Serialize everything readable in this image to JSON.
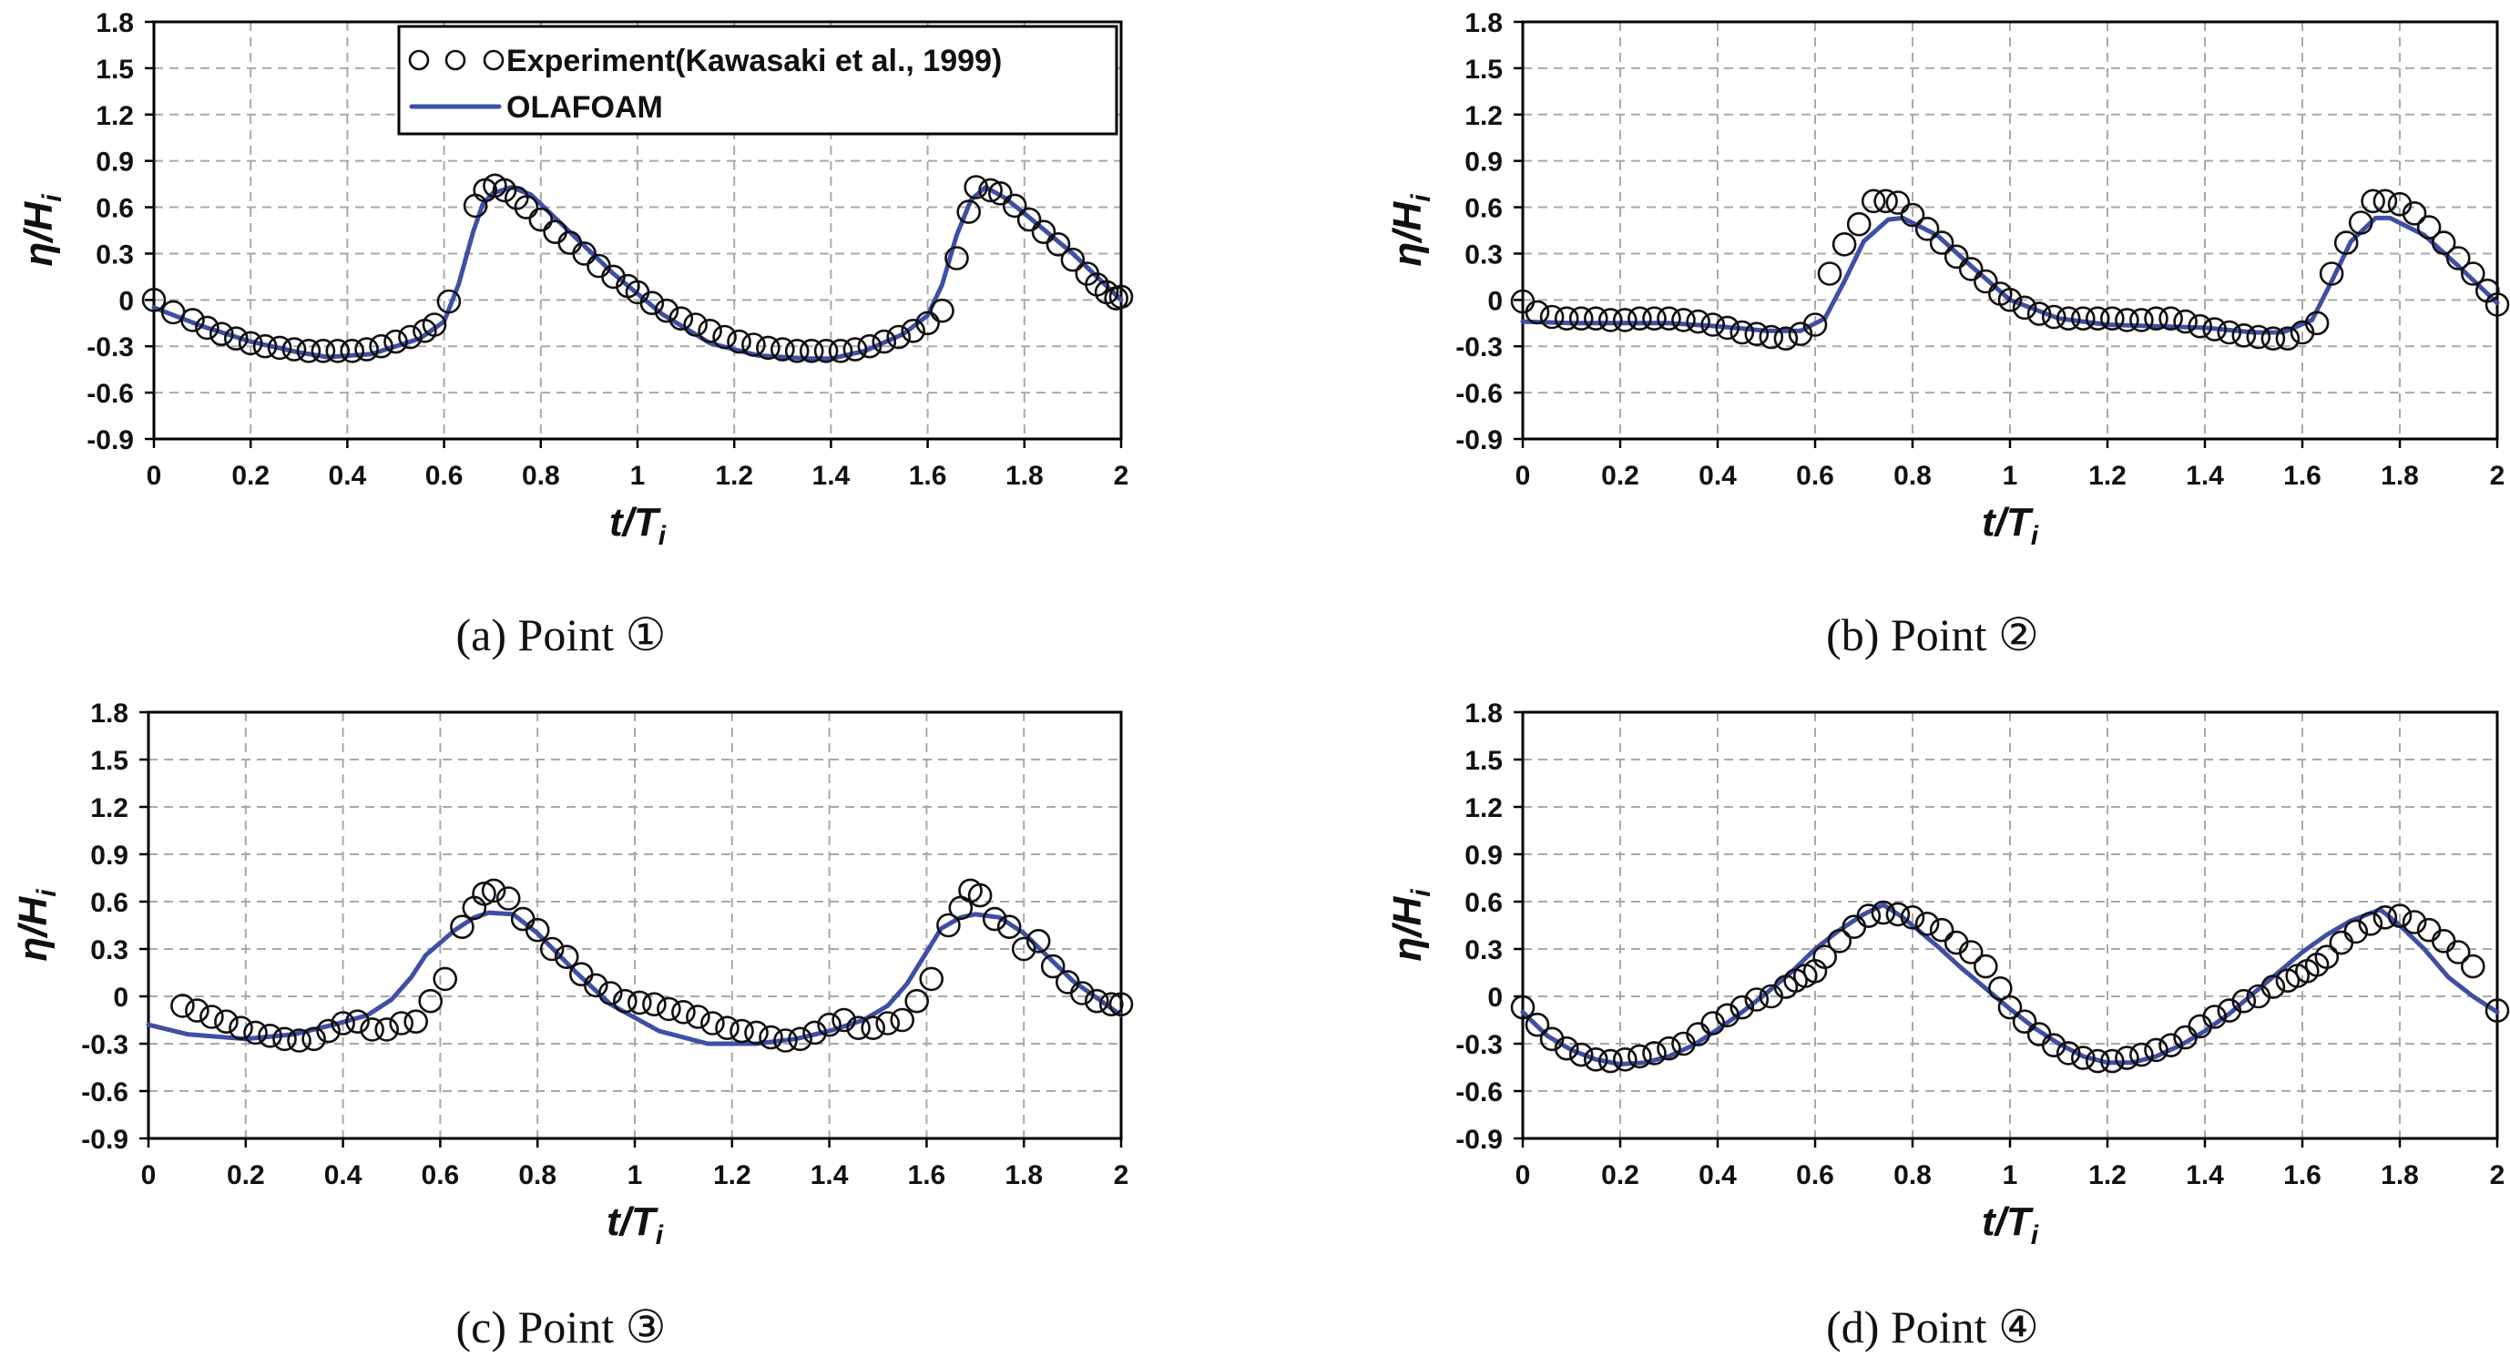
{
  "colors": {
    "simulation": "#3f4fa3",
    "experiment": "#111111",
    "grid": "#a9a9a9"
  },
  "legend": {
    "experiment_label": "Experiment(Kawasaki et al., 1999)",
    "simulation_label": "OLAFOAM"
  },
  "chart_data": [
    {
      "type": "line",
      "caption": "(a) Point ①",
      "xlabel": "t/T",
      "xlabel_sub": "i",
      "ylabel": "η/H",
      "ylabel_sub": "i",
      "xlim": [
        0,
        2
      ],
      "ylim": [
        -0.9,
        1.8
      ],
      "xticks": [
        "0",
        "0.2",
        "0.4",
        "0.6",
        "0.8",
        "1",
        "1.2",
        "1.4",
        "1.6",
        "1.8",
        "2"
      ],
      "yticks": [
        "-0.9",
        "-0.6",
        "-0.3",
        "0",
        "0.3",
        "0.6",
        "0.9",
        "1.2",
        "1.5",
        "1.8"
      ],
      "series": [
        {
          "name": "Experiment(Kawasaki et al., 1999)",
          "style": "circles",
          "x": [
            0,
            0.04,
            0.08,
            0.11,
            0.14,
            0.17,
            0.2,
            0.23,
            0.26,
            0.29,
            0.32,
            0.35,
            0.38,
            0.41,
            0.44,
            0.47,
            0.5,
            0.53,
            0.56,
            0.58,
            0.61,
            0.665,
            0.685,
            0.705,
            0.725,
            0.75,
            0.77,
            0.8,
            0.83,
            0.86,
            0.89,
            0.92,
            0.95,
            0.98,
            1.0,
            1.03,
            1.06,
            1.09,
            1.12,
            1.15,
            1.18,
            1.21,
            1.24,
            1.27,
            1.3,
            1.33,
            1.36,
            1.39,
            1.42,
            1.45,
            1.48,
            1.51,
            1.54,
            1.57,
            1.6,
            1.63,
            1.66,
            1.685,
            1.7,
            1.73,
            1.75,
            1.78,
            1.81,
            1.84,
            1.87,
            1.9,
            1.93,
            1.95,
            1.97,
            1.99,
            2.0
          ],
          "y": [
            0,
            -0.08,
            -0.13,
            -0.18,
            -0.22,
            -0.25,
            -0.28,
            -0.3,
            -0.31,
            -0.32,
            -0.33,
            -0.33,
            -0.33,
            -0.33,
            -0.32,
            -0.3,
            -0.27,
            -0.24,
            -0.2,
            -0.16,
            -0.01,
            0.61,
            0.71,
            0.74,
            0.71,
            0.66,
            0.6,
            0.52,
            0.44,
            0.37,
            0.3,
            0.22,
            0.15,
            0.09,
            0.05,
            -0.02,
            -0.07,
            -0.12,
            -0.16,
            -0.2,
            -0.24,
            -0.27,
            -0.29,
            -0.31,
            -0.32,
            -0.33,
            -0.33,
            -0.33,
            -0.33,
            -0.32,
            -0.3,
            -0.27,
            -0.24,
            -0.2,
            -0.15,
            -0.07,
            0.27,
            0.57,
            0.73,
            0.71,
            0.69,
            0.61,
            0.52,
            0.44,
            0.36,
            0.26,
            0.17,
            0.1,
            0.05,
            0.01,
            0.02
          ]
        },
        {
          "name": "OLAFOAM",
          "style": "line",
          "x": [
            0,
            0.1,
            0.2,
            0.3,
            0.36,
            0.45,
            0.55,
            0.6,
            0.63,
            0.66,
            0.68,
            0.7,
            0.74,
            0.78,
            0.85,
            0.95,
            1.05,
            1.15,
            1.25,
            1.35,
            1.4,
            1.47,
            1.55,
            1.6,
            1.63,
            1.66,
            1.69,
            1.72,
            1.76,
            1.8,
            1.9,
            2.0
          ],
          "y": [
            -0.05,
            -0.17,
            -0.27,
            -0.34,
            -0.37,
            -0.35,
            -0.25,
            -0.14,
            0.1,
            0.44,
            0.62,
            0.69,
            0.73,
            0.68,
            0.47,
            0.17,
            -0.09,
            -0.28,
            -0.36,
            -0.38,
            -0.38,
            -0.33,
            -0.22,
            -0.1,
            0.1,
            0.42,
            0.65,
            0.73,
            0.66,
            0.56,
            0.3,
            0.0
          ]
        }
      ]
    },
    {
      "type": "line",
      "caption": "(b) Point ②",
      "xlabel": "t/T",
      "xlabel_sub": "i",
      "ylabel": "η/H",
      "ylabel_sub": "i",
      "xlim": [
        0,
        2
      ],
      "ylim": [
        -0.9,
        1.8
      ],
      "xticks": [
        "0",
        "0.2",
        "0.4",
        "0.6",
        "0.8",
        "1",
        "1.2",
        "1.4",
        "1.6",
        "1.8",
        "2"
      ],
      "yticks": [
        "-0.9",
        "-0.6",
        "-0.3",
        "0",
        "0.3",
        "0.6",
        "0.9",
        "1.2",
        "1.5",
        "1.8"
      ],
      "series": [
        {
          "name": "Experiment(Kawasaki et al., 1999)",
          "style": "circles",
          "x": [
            0,
            0.03,
            0.06,
            0.09,
            0.12,
            0.15,
            0.18,
            0.21,
            0.24,
            0.27,
            0.3,
            0.33,
            0.36,
            0.39,
            0.42,
            0.45,
            0.48,
            0.51,
            0.54,
            0.57,
            0.6,
            0.63,
            0.66,
            0.69,
            0.72,
            0.745,
            0.77,
            0.8,
            0.83,
            0.86,
            0.89,
            0.92,
            0.95,
            0.98,
            1.0,
            1.03,
            1.06,
            1.09,
            1.12,
            1.15,
            1.18,
            1.21,
            1.24,
            1.27,
            1.3,
            1.33,
            1.36,
            1.39,
            1.42,
            1.45,
            1.48,
            1.51,
            1.54,
            1.57,
            1.6,
            1.63,
            1.66,
            1.69,
            1.72,
            1.745,
            1.77,
            1.8,
            1.83,
            1.86,
            1.89,
            1.92,
            1.95,
            1.98,
            2.0
          ],
          "y": [
            -0.01,
            -0.08,
            -0.11,
            -0.12,
            -0.12,
            -0.12,
            -0.13,
            -0.13,
            -0.12,
            -0.12,
            -0.12,
            -0.13,
            -0.14,
            -0.16,
            -0.18,
            -0.21,
            -0.22,
            -0.24,
            -0.25,
            -0.22,
            -0.16,
            0.17,
            0.36,
            0.49,
            0.64,
            0.64,
            0.63,
            0.55,
            0.46,
            0.37,
            0.28,
            0.2,
            0.12,
            0.04,
            0.0,
            -0.05,
            -0.09,
            -0.11,
            -0.12,
            -0.12,
            -0.12,
            -0.12,
            -0.13,
            -0.13,
            -0.12,
            -0.12,
            -0.14,
            -0.17,
            -0.19,
            -0.21,
            -0.23,
            -0.24,
            -0.25,
            -0.25,
            -0.21,
            -0.15,
            0.17,
            0.37,
            0.5,
            0.64,
            0.64,
            0.62,
            0.56,
            0.47,
            0.37,
            0.27,
            0.17,
            0.06,
            -0.03
          ]
        },
        {
          "name": "OLAFOAM",
          "style": "line",
          "x": [
            0,
            0.1,
            0.2,
            0.3,
            0.4,
            0.5,
            0.57,
            0.62,
            0.66,
            0.7,
            0.75,
            0.78,
            0.85,
            0.92,
            1.0,
            1.1,
            1.2,
            1.3,
            1.4,
            1.5,
            1.56,
            1.62,
            1.66,
            1.7,
            1.75,
            1.78,
            1.85,
            1.92,
            2.0
          ],
          "y": [
            -0.14,
            -0.15,
            -0.15,
            -0.15,
            -0.17,
            -0.2,
            -0.2,
            -0.12,
            0.12,
            0.38,
            0.52,
            0.53,
            0.42,
            0.22,
            0.0,
            -0.12,
            -0.16,
            -0.17,
            -0.18,
            -0.21,
            -0.21,
            -0.13,
            0.12,
            0.38,
            0.53,
            0.53,
            0.42,
            0.22,
            -0.02
          ]
        }
      ]
    },
    {
      "type": "line",
      "caption": "(c) Point ③",
      "xlabel": "t/T",
      "xlabel_sub": "i",
      "ylabel": "η/H",
      "ylabel_sub": "i",
      "xlim": [
        0,
        2
      ],
      "ylim": [
        -0.9,
        1.8
      ],
      "xticks": [
        "0",
        "0.2",
        "0.4",
        "0.6",
        "0.8",
        "1",
        "1.2",
        "1.4",
        "1.6",
        "1.8",
        "2"
      ],
      "yticks": [
        "-0.9",
        "-0.6",
        "-0.3",
        "0",
        "0.3",
        "0.6",
        "0.9",
        "1.2",
        "1.5",
        "1.8"
      ],
      "series": [
        {
          "name": "Experiment(Kawasaki et al., 1999)",
          "style": "circles",
          "x": [
            0.07,
            0.1,
            0.13,
            0.16,
            0.19,
            0.22,
            0.25,
            0.28,
            0.31,
            0.34,
            0.37,
            0.4,
            0.43,
            0.46,
            0.49,
            0.52,
            0.55,
            0.58,
            0.61,
            0.645,
            0.67,
            0.69,
            0.71,
            0.74,
            0.77,
            0.8,
            0.83,
            0.86,
            0.89,
            0.92,
            0.95,
            0.98,
            1.01,
            1.04,
            1.07,
            1.1,
            1.13,
            1.16,
            1.19,
            1.22,
            1.25,
            1.28,
            1.31,
            1.34,
            1.37,
            1.4,
            1.43,
            1.46,
            1.49,
            1.52,
            1.55,
            1.58,
            1.61,
            1.645,
            1.67,
            1.69,
            1.71,
            1.74,
            1.77,
            1.8,
            1.83,
            1.86,
            1.89,
            1.92,
            1.95,
            1.98,
            2.0
          ],
          "y": [
            -0.06,
            -0.09,
            -0.13,
            -0.16,
            -0.2,
            -0.23,
            -0.25,
            -0.27,
            -0.28,
            -0.27,
            -0.22,
            -0.17,
            -0.16,
            -0.21,
            -0.21,
            -0.17,
            -0.16,
            -0.03,
            0.11,
            0.44,
            0.56,
            0.65,
            0.67,
            0.62,
            0.49,
            0.42,
            0.3,
            0.25,
            0.14,
            0.07,
            0.02,
            -0.03,
            -0.04,
            -0.05,
            -0.08,
            -0.1,
            -0.13,
            -0.17,
            -0.2,
            -0.22,
            -0.23,
            -0.26,
            -0.28,
            -0.27,
            -0.23,
            -0.18,
            -0.15,
            -0.2,
            -0.2,
            -0.17,
            -0.15,
            -0.03,
            0.11,
            0.45,
            0.56,
            0.67,
            0.64,
            0.49,
            0.44,
            0.3,
            0.35,
            0.19,
            0.09,
            0.02,
            -0.03,
            -0.05,
            -0.05
          ]
        },
        {
          "name": "OLAFOAM",
          "style": "line",
          "x": [
            0,
            0.08,
            0.2,
            0.3,
            0.38,
            0.45,
            0.5,
            0.54,
            0.57,
            0.6,
            0.63,
            0.67,
            0.7,
            0.75,
            0.8,
            0.88,
            0.95,
            1.05,
            1.15,
            1.25,
            1.33,
            1.4,
            1.47,
            1.52,
            1.56,
            1.6,
            1.63,
            1.67,
            1.7,
            1.75,
            1.8,
            1.9,
            2.0
          ],
          "y": [
            -0.18,
            -0.24,
            -0.27,
            -0.24,
            -0.18,
            -0.12,
            -0.02,
            0.12,
            0.26,
            0.34,
            0.42,
            0.5,
            0.53,
            0.52,
            0.4,
            0.15,
            -0.05,
            -0.22,
            -0.3,
            -0.3,
            -0.27,
            -0.22,
            -0.15,
            -0.06,
            0.08,
            0.28,
            0.43,
            0.5,
            0.52,
            0.5,
            0.4,
            0.1,
            -0.12
          ]
        }
      ]
    },
    {
      "type": "line",
      "caption": "(d) Point ④",
      "xlabel": "t/T",
      "xlabel_sub": "i",
      "ylabel": "η/H",
      "ylabel_sub": "i",
      "xlim": [
        0,
        2
      ],
      "ylim": [
        -0.9,
        1.8
      ],
      "xticks": [
        "0",
        "0.2",
        "0.4",
        "0.6",
        "0.8",
        "1",
        "1.2",
        "1.4",
        "1.6",
        "1.8",
        "2"
      ],
      "yticks": [
        "-0.9",
        "-0.6",
        "-0.3",
        "0",
        "0.3",
        "0.6",
        "0.9",
        "1.2",
        "1.5",
        "1.8"
      ],
      "series": [
        {
          "name": "Experiment(Kawasaki et al., 1999)",
          "style": "circles",
          "x": [
            0,
            0.03,
            0.06,
            0.09,
            0.12,
            0.15,
            0.18,
            0.21,
            0.24,
            0.27,
            0.3,
            0.33,
            0.36,
            0.39,
            0.42,
            0.45,
            0.48,
            0.51,
            0.54,
            0.56,
            0.58,
            0.6,
            0.62,
            0.65,
            0.68,
            0.71,
            0.74,
            0.77,
            0.8,
            0.83,
            0.86,
            0.89,
            0.92,
            0.95,
            0.98,
            1.0,
            1.03,
            1.06,
            1.09,
            1.12,
            1.15,
            1.18,
            1.21,
            1.24,
            1.27,
            1.3,
            1.33,
            1.36,
            1.39,
            1.42,
            1.45,
            1.48,
            1.51,
            1.54,
            1.57,
            1.59,
            1.61,
            1.63,
            1.65,
            1.68,
            1.71,
            1.74,
            1.77,
            1.8,
            1.83,
            1.86,
            1.89,
            1.92,
            1.95,
            2.0
          ],
          "y": [
            -0.07,
            -0.18,
            -0.27,
            -0.33,
            -0.37,
            -0.4,
            -0.41,
            -0.4,
            -0.38,
            -0.36,
            -0.33,
            -0.3,
            -0.24,
            -0.17,
            -0.12,
            -0.07,
            -0.02,
            0.0,
            0.06,
            0.1,
            0.13,
            0.16,
            0.25,
            0.35,
            0.44,
            0.51,
            0.53,
            0.52,
            0.5,
            0.46,
            0.42,
            0.34,
            0.28,
            0.19,
            0.05,
            -0.07,
            -0.16,
            -0.24,
            -0.31,
            -0.36,
            -0.39,
            -0.41,
            -0.41,
            -0.39,
            -0.37,
            -0.34,
            -0.31,
            -0.26,
            -0.19,
            -0.13,
            -0.09,
            -0.03,
            0.0,
            0.06,
            0.1,
            0.13,
            0.16,
            0.2,
            0.25,
            0.34,
            0.41,
            0.46,
            0.5,
            0.51,
            0.47,
            0.42,
            0.35,
            0.28,
            0.19,
            -0.09
          ]
        },
        {
          "name": "OLAFOAM",
          "style": "line",
          "x": [
            0,
            0.05,
            0.1,
            0.15,
            0.2,
            0.25,
            0.3,
            0.35,
            0.4,
            0.45,
            0.5,
            0.55,
            0.6,
            0.65,
            0.7,
            0.74,
            0.78,
            0.85,
            0.9,
            0.95,
            1.0,
            1.05,
            1.1,
            1.15,
            1.2,
            1.25,
            1.3,
            1.35,
            1.4,
            1.45,
            1.5,
            1.55,
            1.6,
            1.65,
            1.7,
            1.76,
            1.8,
            1.85,
            1.9,
            1.95,
            2.0
          ],
          "y": [
            -0.1,
            -0.25,
            -0.34,
            -0.4,
            -0.43,
            -0.42,
            -0.38,
            -0.31,
            -0.21,
            -0.1,
            0.02,
            0.15,
            0.3,
            0.42,
            0.52,
            0.58,
            0.5,
            0.32,
            0.18,
            0.05,
            -0.08,
            -0.2,
            -0.3,
            -0.38,
            -0.42,
            -0.42,
            -0.38,
            -0.31,
            -0.22,
            -0.11,
            0.02,
            0.15,
            0.28,
            0.39,
            0.48,
            0.55,
            0.45,
            0.3,
            0.12,
            0.0,
            -0.1
          ]
        }
      ]
    }
  ]
}
